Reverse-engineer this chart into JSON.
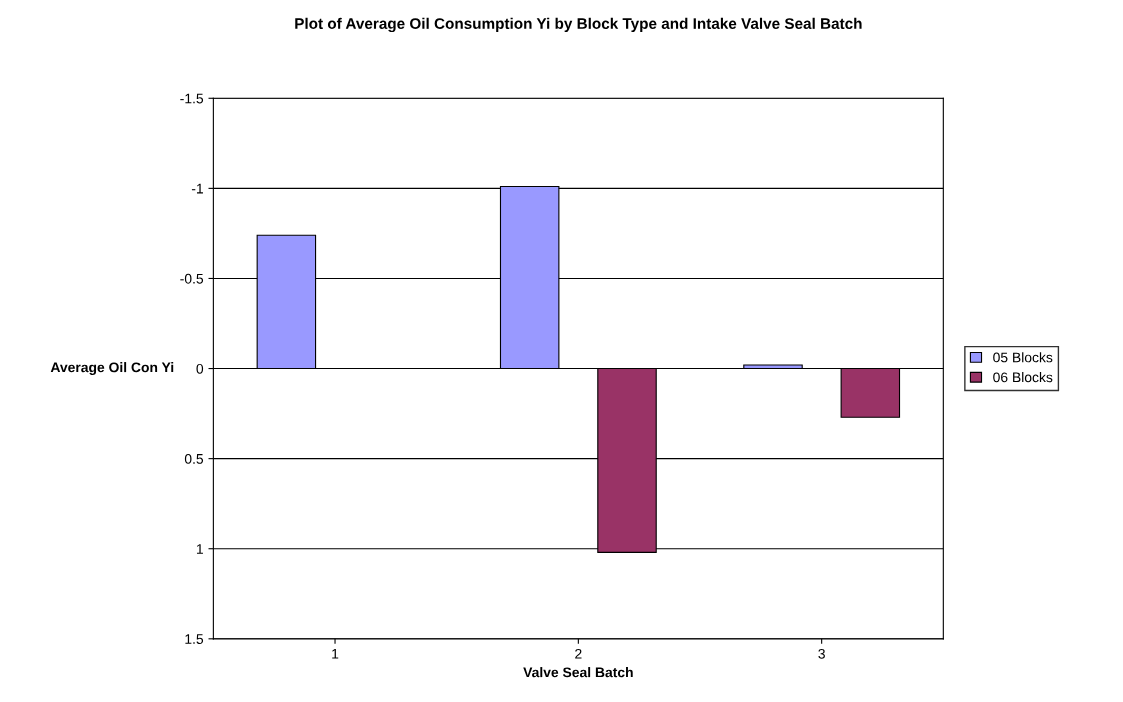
{
  "chart_data": {
    "type": "bar",
    "title": "Plot of Average Oil Consumption Yi by Block Type and Intake Valve Seal Batch",
    "xlabel": "Valve Seal Batch",
    "ylabel": "Average Oil Con Yi",
    "categories": [
      "1",
      "2",
      "3"
    ],
    "series": [
      {
        "name": "05 Blocks",
        "color": "#9999ff",
        "values": [
          -0.74,
          -1.01,
          -0.02
        ]
      },
      {
        "name": "06 Blocks",
        "color": "#993366",
        "values": [
          null,
          1.02,
          0.27
        ]
      }
    ],
    "ylim": [
      1.5,
      -1.5
    ],
    "yticks": [
      -1.5,
      -1,
      -0.5,
      0,
      0.5,
      1,
      1.5
    ],
    "grid": "y",
    "legend": "right"
  }
}
